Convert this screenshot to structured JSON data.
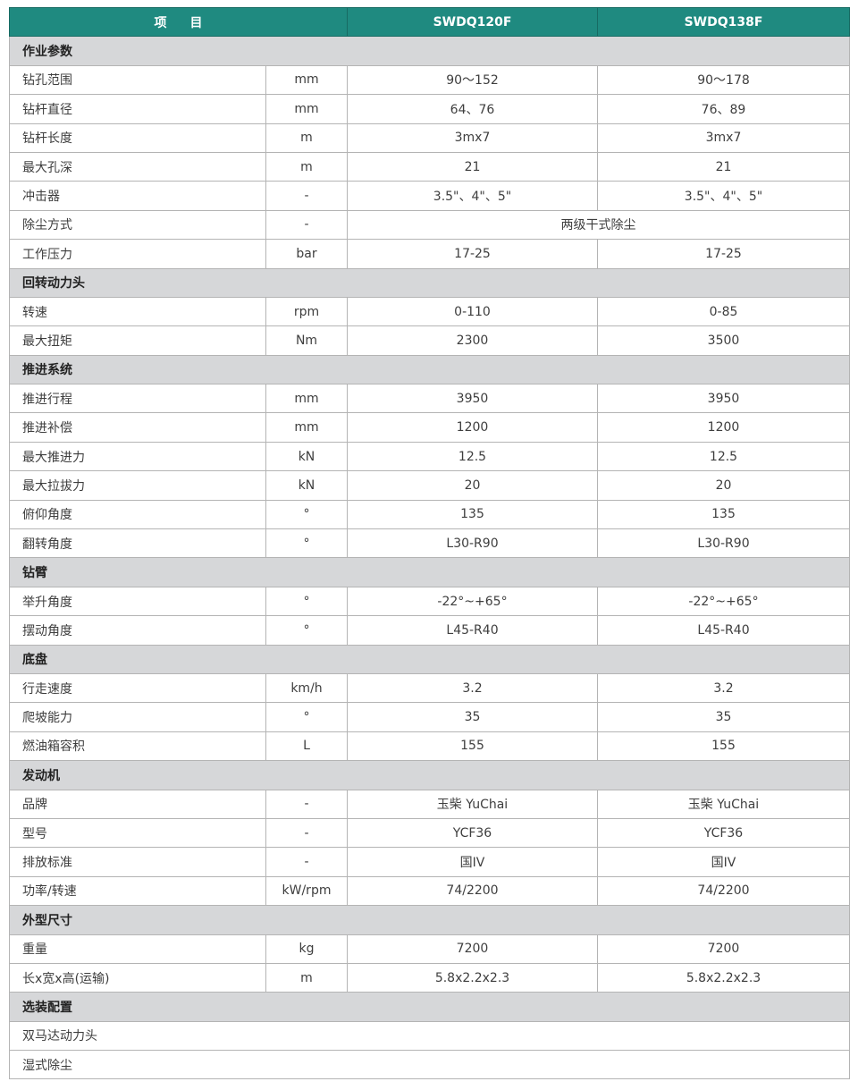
{
  "header": {
    "item": "项目",
    "models": [
      "SWDQ120F",
      "SWDQ138F"
    ]
  },
  "colors": {
    "header_bg": "#1f8a80",
    "section_bg": "#d6d7d9"
  },
  "sections": [
    {
      "title": "作业参数",
      "rows": [
        {
          "label": "钻孔范围",
          "unit": "mm",
          "values": [
            "90～152",
            "90～178"
          ]
        },
        {
          "label": "钻杆直径",
          "unit": "mm",
          "values": [
            "64、76",
            "76、89"
          ]
        },
        {
          "label": "钻杆长度",
          "unit": "m",
          "values": [
            "3mx7",
            "3mx7"
          ]
        },
        {
          "label": "最大孔深",
          "unit": "m",
          "values": [
            "21",
            "21"
          ]
        },
        {
          "label": "冲击器",
          "unit": "-",
          "values": [
            "3.5\"、4\"、5\"",
            "3.5\"、4\"、5\""
          ]
        },
        {
          "label": "除尘方式",
          "unit": "-",
          "merged": "两级干式除尘"
        },
        {
          "label": "工作压力",
          "unit": "bar",
          "values": [
            "17-25",
            "17-25"
          ]
        }
      ]
    },
    {
      "title": "回转动力头",
      "rows": [
        {
          "label": "转速",
          "unit": "rpm",
          "values": [
            "0-110",
            "0-85"
          ]
        },
        {
          "label": "最大扭矩",
          "unit": "Nm",
          "values": [
            "2300",
            "3500"
          ]
        }
      ]
    },
    {
      "title": "推进系统",
      "rows": [
        {
          "label": "推进行程",
          "unit": "mm",
          "values": [
            "3950",
            "3950"
          ]
        },
        {
          "label": "推进补偿",
          "unit": "mm",
          "values": [
            "1200",
            "1200"
          ]
        },
        {
          "label": "最大推进力",
          "unit": "kN",
          "values": [
            "12.5",
            "12.5"
          ]
        },
        {
          "label": "最大拉拔力",
          "unit": "kN",
          "values": [
            "20",
            "20"
          ]
        },
        {
          "label": "俯仰角度",
          "unit": "°",
          "values": [
            "135",
            "135"
          ]
        },
        {
          "label": "翻转角度",
          "unit": "°",
          "values": [
            "L30-R90",
            "L30-R90"
          ]
        }
      ]
    },
    {
      "title": "钻臂",
      "rows": [
        {
          "label": "举升角度",
          "unit": "°",
          "values": [
            "-22°~+65°",
            "-22°~+65°"
          ]
        },
        {
          "label": "摆动角度",
          "unit": "°",
          "values": [
            "L45-R40",
            "L45-R40"
          ]
        }
      ]
    },
    {
      "title": "底盘",
      "rows": [
        {
          "label": "行走速度",
          "unit": "km/h",
          "values": [
            "3.2",
            "3.2"
          ]
        },
        {
          "label": "爬坡能力",
          "unit": "°",
          "values": [
            "35",
            "35"
          ]
        },
        {
          "label": "燃油箱容积",
          "unit": "L",
          "values": [
            "155",
            "155"
          ]
        }
      ]
    },
    {
      "title": "发动机",
      "rows": [
        {
          "label": "品牌",
          "unit": "-",
          "values": [
            "玉柴 YuChai",
            "玉柴 YuChai"
          ]
        },
        {
          "label": "型号",
          "unit": "-",
          "values": [
            "YCF36",
            "YCF36"
          ]
        },
        {
          "label": "排放标准",
          "unit": "-",
          "values": [
            "国IV",
            "国IV"
          ]
        },
        {
          "label": "功率/转速",
          "unit": "kW/rpm",
          "values": [
            "74/2200",
            "74/2200"
          ]
        }
      ]
    },
    {
      "title": "外型尺寸",
      "rows": [
        {
          "label": "重量",
          "unit": "kg",
          "values": [
            "7200",
            "7200"
          ]
        },
        {
          "label": "长x宽x高(运输)",
          "unit": "m",
          "values": [
            "5.8x2.2x2.3",
            "5.8x2.2x2.3"
          ]
        }
      ]
    },
    {
      "title": "选装配置",
      "rows": [
        {
          "label": "双马达动力头",
          "full": true
        },
        {
          "label": "湿式除尘",
          "full": true
        }
      ]
    }
  ]
}
